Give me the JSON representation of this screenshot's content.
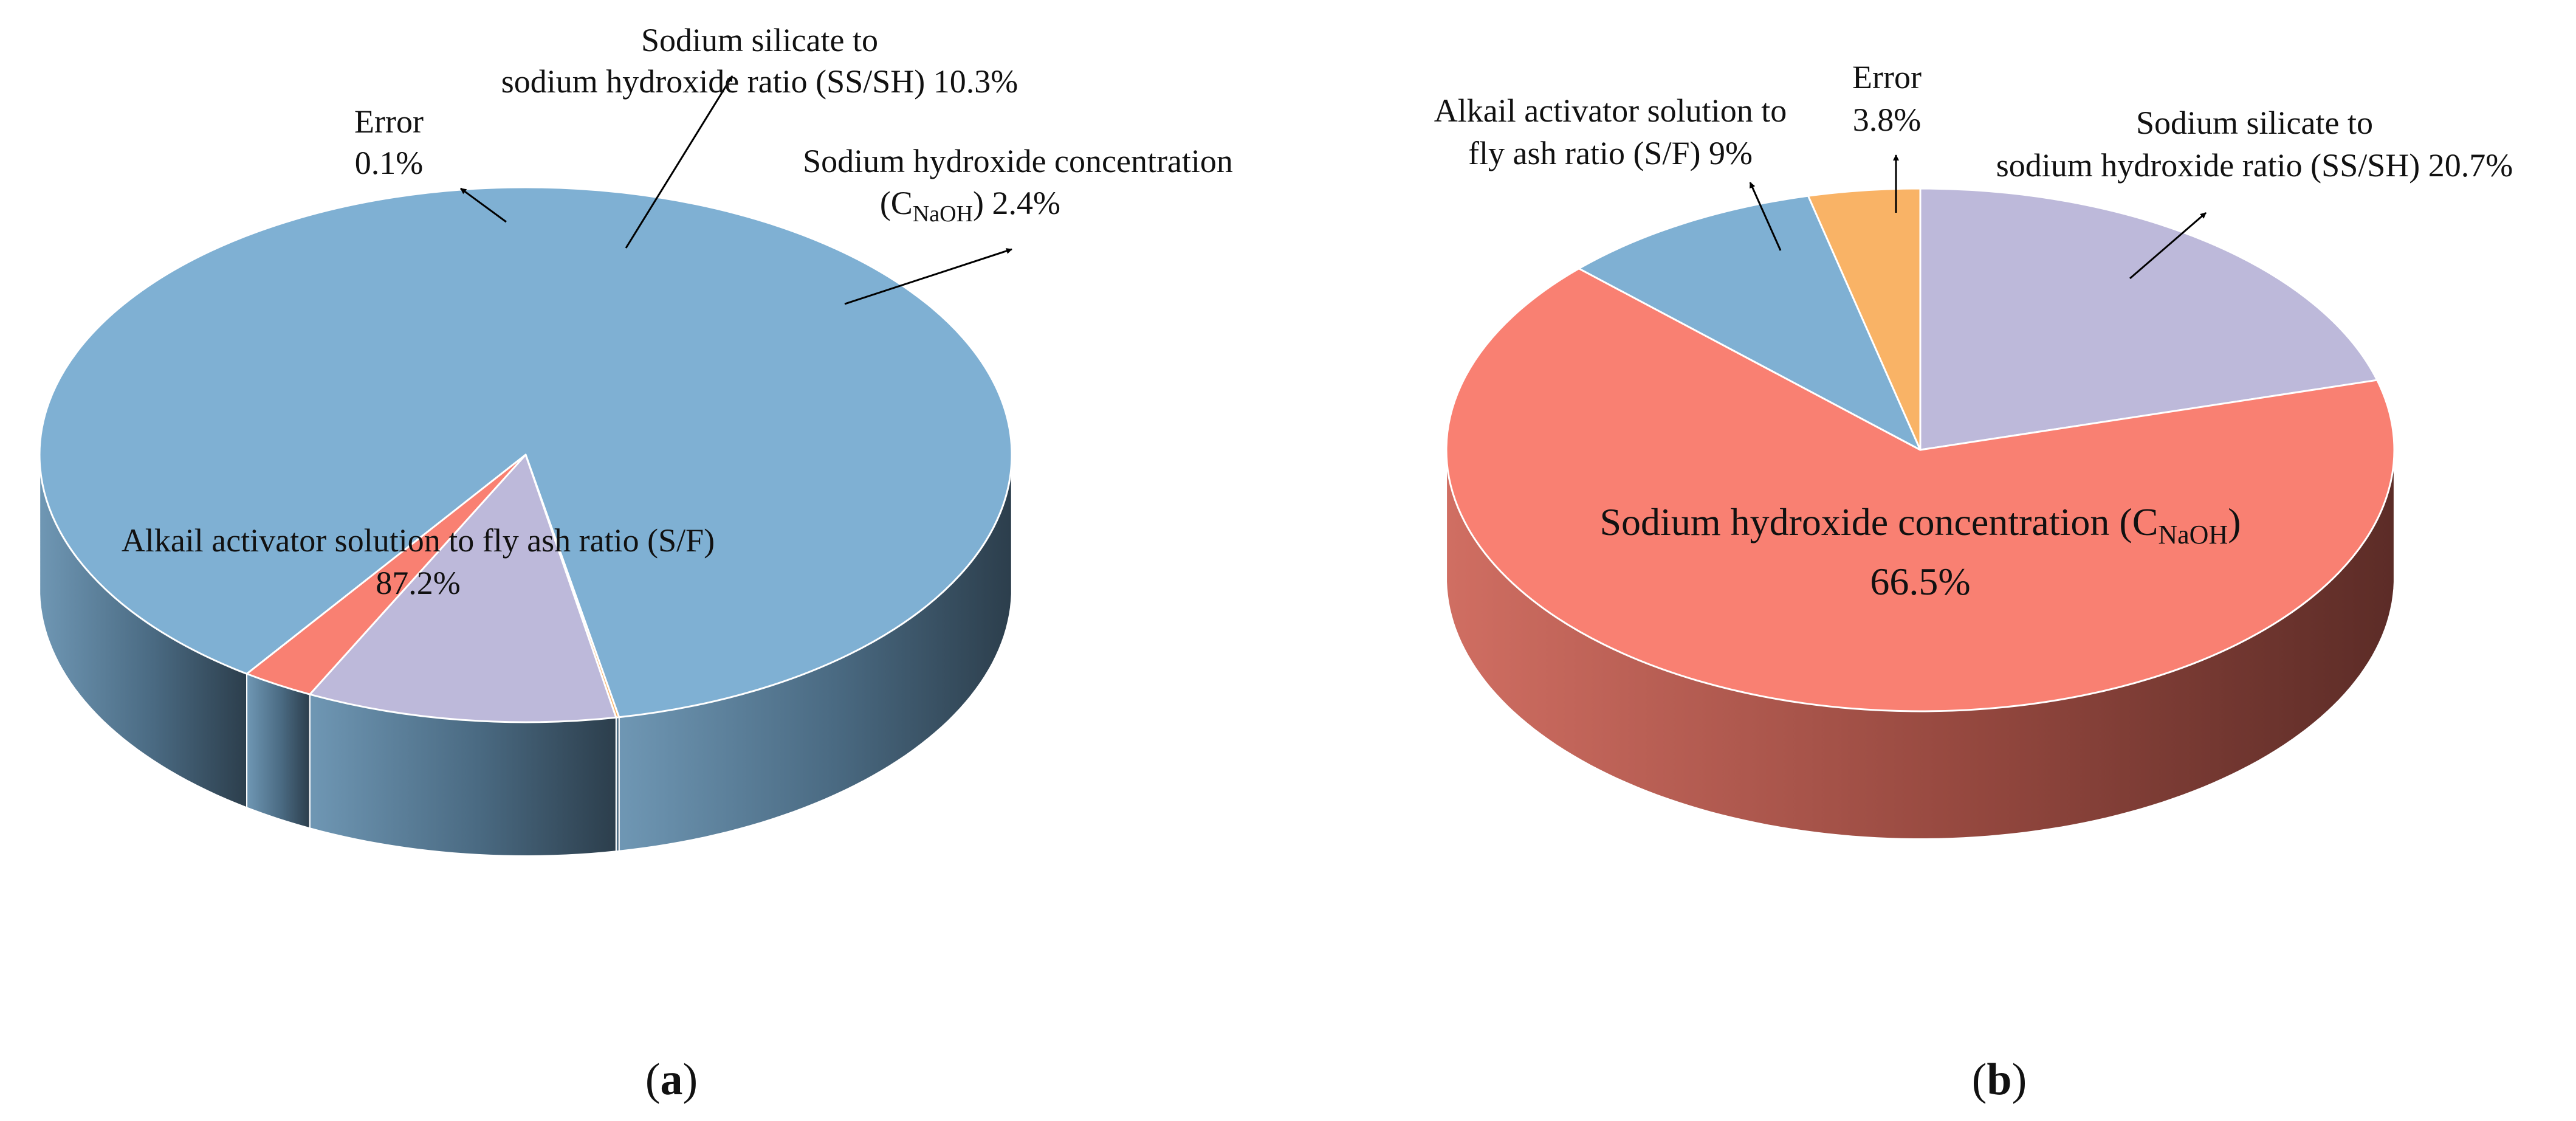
{
  "chart_data": [
    {
      "type": "pie",
      "panel_label": "a",
      "slices": [
        {
          "name": "Alkail activator solution to fly ash ratio (S/F)",
          "value": 87.2,
          "value_label": "87.2%",
          "color": "#7FB0D3",
          "side_color": "#5B7F9A",
          "side_dark": "#2E4050"
        },
        {
          "name": "Error",
          "value": 0.1,
          "value_label": "0.1%",
          "color": "#F9B366",
          "side_color": "#C98A45",
          "side_dark": "#5E4022"
        },
        {
          "name": "Sodium silicate to sodium hydroxide ratio (SS/SH)",
          "value": 10.3,
          "value_label": "10.3%",
          "color": "#BDB9DA",
          "side_color": "#8F8CA8",
          "side_dark": "#4A4860"
        },
        {
          "name": "Sodium hydroxide concentration (CNaOH)",
          "value": 2.4,
          "value_label": "2.4%",
          "color": "#F98072",
          "side_color": "#C26056",
          "side_dark": "#60302B"
        }
      ],
      "labels": {
        "sf_line1": "Alkail activator solution to fly ash ratio (S/F)",
        "sf_line2": "87.2%",
        "err_line1": "Error",
        "err_line2": "0.1%",
        "sssh_line1": "Sodium silicate to",
        "sssh_line2": "sodium hydroxide ratio (SS/SH) 10.3%",
        "naoh_line1": "Sodium hydroxide concentration",
        "naoh_open": "(C",
        "naoh_sub": "NaOH",
        "naoh_close": ") 2.4%"
      }
    },
    {
      "type": "pie",
      "panel_label": "b",
      "slices": [
        {
          "name": "Sodium silicate to sodium hydroxide ratio (SS/SH)",
          "value": 20.7,
          "value_label": "20.7%",
          "color": "#BDB9DA",
          "side_color": "#8F8CA8",
          "side_dark": "#4A4860"
        },
        {
          "name": "Sodium hydroxide concentration (CNaOH)",
          "value": 66.5,
          "value_label": "66.5%",
          "color": "#F98072",
          "side_color": "#C9685C",
          "side_dark": "#5E2D28"
        },
        {
          "name": "Alkail activator solution to fly ash ratio (S/F)",
          "value": 9,
          "value_label": "9%",
          "color": "#7FB0D3",
          "side_color": "#5B7F9A",
          "side_dark": "#2E4050"
        },
        {
          "name": "Error",
          "value": 3.8,
          "value_label": "3.8%",
          "color": "#F9B366",
          "side_color": "#C98A45",
          "side_dark": "#5E4022"
        }
      ],
      "labels": {
        "sssh_line1": "Sodium silicate to",
        "sssh_line2": "sodium hydroxide ratio (SS/SH) 20.7%",
        "naoh_open": "Sodium hydroxide concentration (C",
        "naoh_sub": "NaOH",
        "naoh_close": ")",
        "naoh_line2": "66.5%",
        "sf_line1": "Alkail activator solution to",
        "sf_line2": "fly ash ratio (S/F) 9%",
        "err_line1": "Error",
        "err_line2": "3.8%"
      }
    }
  ]
}
